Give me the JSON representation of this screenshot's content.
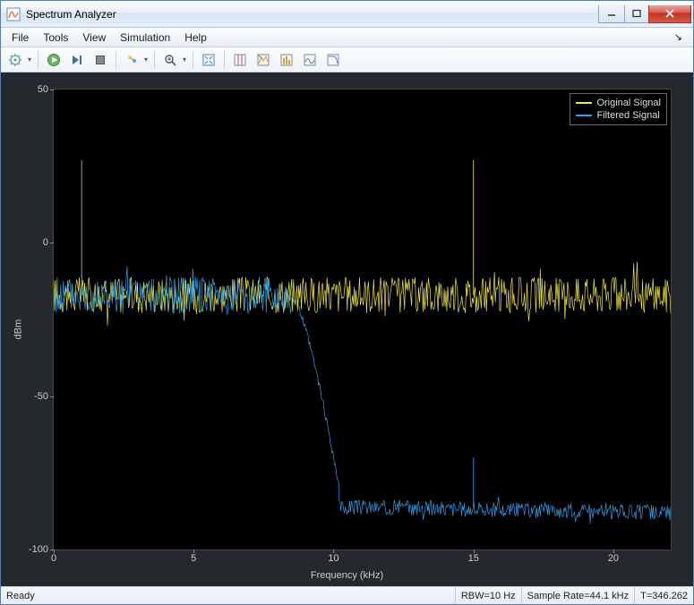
{
  "window": {
    "title": "Spectrum Analyzer"
  },
  "menu": {
    "items": [
      "File",
      "Tools",
      "View",
      "Simulation",
      "Help"
    ]
  },
  "toolbar": {
    "buttons": [
      {
        "name": "configure-icon"
      },
      {
        "name": "dropdown-icon",
        "drop": true
      },
      {
        "sep": true
      },
      {
        "name": "run-icon"
      },
      {
        "name": "step-icon"
      },
      {
        "name": "stop-icon"
      },
      {
        "sep": true
      },
      {
        "name": "highlight-icon"
      },
      {
        "name": "dropdown-icon",
        "drop": true
      },
      {
        "sep": true
      },
      {
        "name": "zoom-icon"
      },
      {
        "name": "dropdown-icon",
        "drop": true
      },
      {
        "sep": true
      },
      {
        "name": "autoscale-icon"
      },
      {
        "sep": true
      },
      {
        "name": "cursor-measure-icon"
      },
      {
        "name": "peak-finder-icon"
      },
      {
        "name": "channel-meas-icon"
      },
      {
        "name": "distortion-icon"
      },
      {
        "name": "ccdf-icon"
      }
    ]
  },
  "chart": {
    "type": "line",
    "background_color": "#000000",
    "outer_background": "#25292e",
    "axis_color": "#444444",
    "tick_color": "#cccccc",
    "tick_fontsize": 11,
    "xlabel": "Frequency (kHz)",
    "ylabel": "dBm",
    "label_fontsize": 11,
    "xlim": [
      0,
      22.05
    ],
    "ylim": [
      -100,
      50
    ],
    "xticks": [
      0,
      5,
      10,
      15,
      20
    ],
    "yticks": [
      -100,
      -50,
      0,
      50
    ],
    "legend": {
      "position": "top-right",
      "border_color": "#666666",
      "items": [
        {
          "label": "Original Signal",
          "color": "#f2e93d"
        },
        {
          "label": "Filtered Signal",
          "color": "#2f9fe6"
        }
      ]
    },
    "series": [
      {
        "name": "Original Signal",
        "color": "#f2e93d",
        "line_width": 1,
        "noise_band": {
          "center_db": -17,
          "amplitude_db": 6,
          "x_from": 0,
          "x_to": 22.05
        },
        "spikes": [
          {
            "x": 1.0,
            "y": 27
          },
          {
            "x": 15.0,
            "y": 27
          }
        ]
      },
      {
        "name": "Filtered Signal",
        "color": "#2f9fe6",
        "line_width": 1,
        "segments": [
          {
            "type": "noise",
            "x_from": 0,
            "x_to": 8.5,
            "center_db": -17,
            "amplitude_db": 6
          },
          {
            "type": "rolloff",
            "x_from": 8.5,
            "x_to": 10.2,
            "y_from": -17,
            "y_to": -80
          },
          {
            "type": "noise",
            "x_from": 10.2,
            "x_to": 22.05,
            "center_db": -86,
            "amplitude_db": 2.5,
            "slope_to": -88
          }
        ],
        "spikes": [
          {
            "x": 1.0,
            "y": 27
          },
          {
            "x": 15.0,
            "y": -70,
            "y_base": -86
          }
        ]
      }
    ]
  },
  "status": {
    "ready": "Ready",
    "rbw": "RBW=10 Hz",
    "sample_rate": "Sample Rate=44.1 kHz",
    "time": "T=346.262"
  }
}
